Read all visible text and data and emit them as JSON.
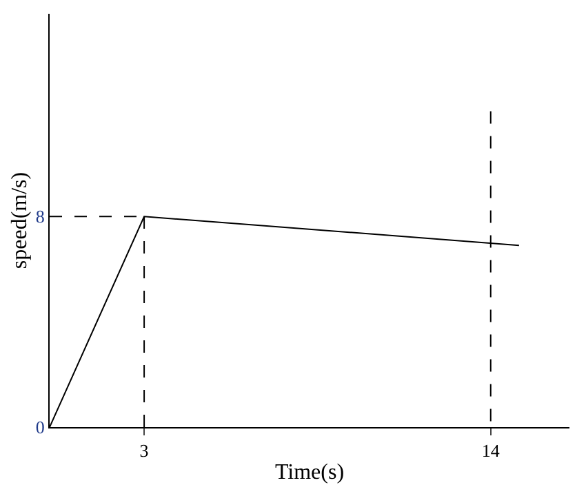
{
  "chart_data": {
    "type": "line",
    "xlabel": "Time(s)",
    "ylabel": "speed(m/s)",
    "xlim": [
      0,
      16.5
    ],
    "ylim": [
      0,
      15.7
    ],
    "xticks": [
      3,
      14
    ],
    "yticks": [
      0,
      8
    ],
    "marker": "none",
    "series": [
      {
        "x": [
          0,
          3,
          14.9
        ],
        "values": [
          0,
          8,
          6.9
        ],
        "color": "#000000",
        "line_style": "solid"
      },
      {
        "x": [
          0,
          3
        ],
        "values": [
          8,
          8
        ],
        "color": "#000000",
        "line_style": "dashed"
      },
      {
        "x": [
          3,
          3
        ],
        "values": [
          0,
          8
        ],
        "color": "#000000",
        "line_style": "dashed"
      },
      {
        "x": [
          14,
          14
        ],
        "values": [
          12,
          0
        ],
        "color": "#000000",
        "line_style": "dashed"
      }
    ]
  }
}
